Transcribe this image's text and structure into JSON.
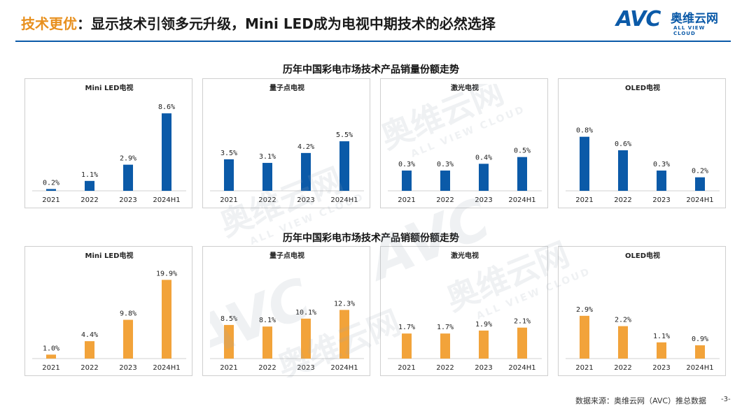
{
  "header": {
    "title_highlight": "技术更优",
    "title_rest": "：显示技术引领多元升级，Mini LED成为电视中期技术的必然选择",
    "logo_mark": "AVC",
    "logo_cn": "奥维云网",
    "logo_en": "ALL VIEW CLOUD"
  },
  "sections": [
    {
      "title": "历年中国彩电市场技术产品销量份额走势"
    },
    {
      "title": "历年中国彩电市场技术产品销额份额走势"
    }
  ],
  "watermark": {
    "cn": "奥维云网",
    "en": "ALL VIEW CLOUD",
    "mark": "AVC"
  },
  "footer": {
    "source": "数据来源：奥维云网（AVC）推总数据",
    "page": "-3-"
  },
  "colors": {
    "volume_bar": "#0b5aa8",
    "value_bar": "#f2a33a",
    "title_accent": "#e8901e",
    "rule": "#0b5aa8"
  },
  "chart_data": [
    {
      "type": "bar",
      "group": "销量份额",
      "title": "Mini LED电视",
      "categories": [
        "2021",
        "2022",
        "2023",
        "2024H1"
      ],
      "values": [
        0.2,
        1.1,
        2.9,
        8.6
      ],
      "labels": [
        "0.2%",
        "1.1%",
        "2.9%",
        "8.6%"
      ],
      "ylim": [
        0,
        9
      ]
    },
    {
      "type": "bar",
      "group": "销量份额",
      "title": "量子点电视",
      "categories": [
        "2021",
        "2022",
        "2023",
        "2024H1"
      ],
      "values": [
        3.5,
        3.1,
        4.2,
        5.5
      ],
      "labels": [
        "3.5%",
        "3.1%",
        "4.2%",
        "5.5%"
      ],
      "ylim": [
        0,
        9
      ]
    },
    {
      "type": "bar",
      "group": "销量份额",
      "title": "激光电视",
      "categories": [
        "2021",
        "2022",
        "2023",
        "2024H1"
      ],
      "values": [
        0.3,
        0.3,
        0.4,
        0.5
      ],
      "labels": [
        "0.3%",
        "0.3%",
        "0.4%",
        "0.5%"
      ],
      "ylim": [
        0,
        1.2
      ]
    },
    {
      "type": "bar",
      "group": "销量份额",
      "title": "OLED电视",
      "categories": [
        "2021",
        "2022",
        "2023",
        "2024H1"
      ],
      "values": [
        0.8,
        0.6,
        0.3,
        0.2
      ],
      "labels": [
        "0.8%",
        "0.6%",
        "0.3%",
        "0.2%"
      ],
      "ylim": [
        0,
        1.2
      ]
    },
    {
      "type": "bar",
      "group": "销额份额",
      "title": "Mini LED电视",
      "categories": [
        "2021",
        "2022",
        "2023",
        "2024H1"
      ],
      "values": [
        1.0,
        4.4,
        9.8,
        19.9
      ],
      "labels": [
        "1.0%",
        "4.4%",
        "9.8%",
        "19.9%"
      ],
      "ylim": [
        0,
        20.5
      ]
    },
    {
      "type": "bar",
      "group": "销额份额",
      "title": "量子点电视",
      "categories": [
        "2021",
        "2022",
        "2023",
        "2024H1"
      ],
      "values": [
        8.5,
        8.1,
        10.1,
        12.3
      ],
      "labels": [
        "8.5%",
        "8.1%",
        "10.1%",
        "12.3%"
      ],
      "ylim": [
        0,
        20.5
      ]
    },
    {
      "type": "bar",
      "group": "销额份额",
      "title": "激光电视",
      "categories": [
        "2021",
        "2022",
        "2023",
        "2024H1"
      ],
      "values": [
        1.7,
        1.7,
        1.9,
        2.1
      ],
      "labels": [
        "1.7%",
        "1.7%",
        "1.9%",
        "2.1%"
      ],
      "ylim": [
        0,
        5.5
      ]
    },
    {
      "type": "bar",
      "group": "销额份额",
      "title": "OLED电视",
      "categories": [
        "2021",
        "2022",
        "2023",
        "2024H1"
      ],
      "values": [
        2.9,
        2.2,
        1.1,
        0.9
      ],
      "labels": [
        "2.9%",
        "2.2%",
        "1.1%",
        "0.9%"
      ],
      "ylim": [
        0,
        5.5
      ]
    }
  ]
}
